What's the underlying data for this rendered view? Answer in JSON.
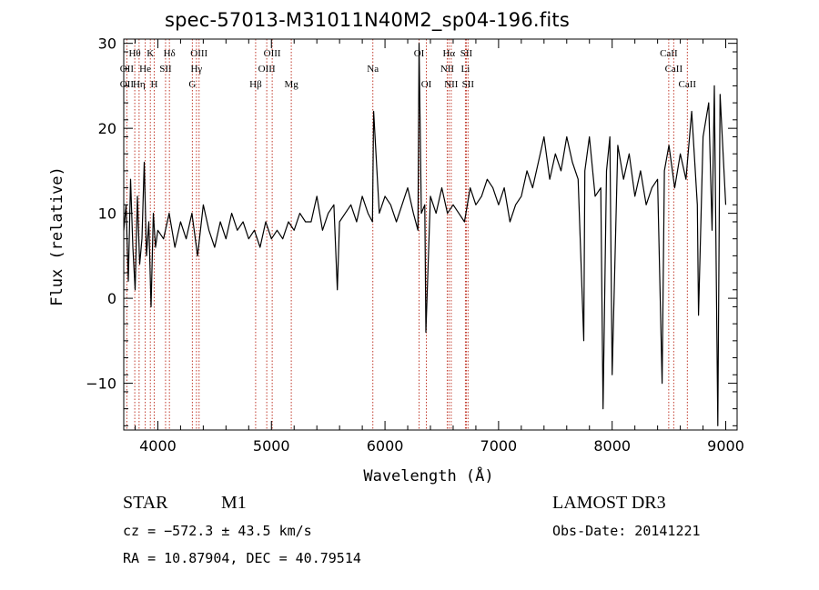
{
  "chart_data": {
    "type": "line",
    "title": "spec-57013-M31011N40M2_sp04-196.fits",
    "xlabel": "Wavelength (Å)",
    "ylabel": "Flux (relative)",
    "xlim": [
      3700,
      9100
    ],
    "ylim": [
      -15.5,
      30.5
    ],
    "x_ticks": [
      4000,
      5000,
      6000,
      7000,
      8000,
      9000
    ],
    "x_tick_labels": [
      "4000",
      "5000",
      "6000",
      "7000",
      "8000",
      "9000"
    ],
    "y_ticks": [
      -10,
      0,
      10,
      20,
      30
    ],
    "y_tick_labels": [
      "−10",
      "0",
      "10",
      "20",
      "30"
    ],
    "grid": false,
    "series": [
      {
        "name": "flux",
        "x": [
          3700,
          3720,
          3740,
          3760,
          3780,
          3800,
          3820,
          3840,
          3860,
          3880,
          3900,
          3920,
          3940,
          3960,
          3980,
          4000,
          4050,
          4100,
          4150,
          4200,
          4250,
          4300,
          4350,
          4400,
          4450,
          4500,
          4550,
          4600,
          4650,
          4700,
          4750,
          4800,
          4850,
          4900,
          4950,
          5000,
          5050,
          5100,
          5150,
          5200,
          5250,
          5300,
          5350,
          5400,
          5450,
          5500,
          5550,
          5580,
          5600,
          5650,
          5700,
          5750,
          5800,
          5850,
          5890,
          5900,
          5950,
          6000,
          6050,
          6100,
          6150,
          6200,
          6250,
          6290,
          6300,
          6320,
          6350,
          6360,
          6400,
          6450,
          6500,
          6550,
          6600,
          6650,
          6700,
          6750,
          6800,
          6850,
          6900,
          6950,
          7000,
          7050,
          7100,
          7150,
          7200,
          7250,
          7300,
          7350,
          7400,
          7450,
          7500,
          7550,
          7600,
          7650,
          7700,
          7750,
          7760,
          7800,
          7850,
          7900,
          7920,
          7950,
          7980,
          8000,
          8050,
          8100,
          8150,
          8200,
          8250,
          8300,
          8350,
          8400,
          8440,
          8460,
          8500,
          8550,
          8600,
          8650,
          8700,
          8750,
          8760,
          8800,
          8850,
          8880,
          8900,
          8930,
          8950,
          9000
        ],
        "y": [
          8,
          11,
          2,
          14,
          6,
          1,
          12,
          4,
          7,
          16,
          5,
          9,
          -1,
          10,
          6,
          8,
          7,
          10,
          6,
          9,
          7,
          10,
          5,
          11,
          8,
          6,
          9,
          7,
          10,
          8,
          9,
          7,
          8,
          6,
          9,
          7,
          8,
          7,
          9,
          8,
          10,
          9,
          9,
          12,
          8,
          10,
          11,
          1,
          9,
          10,
          11,
          9,
          12,
          10,
          9,
          22,
          10,
          12,
          11,
          9,
          11,
          13,
          10,
          8,
          30,
          10,
          11,
          -4,
          12,
          10,
          13,
          10,
          11,
          10,
          9,
          13,
          11,
          12,
          14,
          13,
          11,
          13,
          9,
          11,
          12,
          15,
          13,
          16,
          19,
          14,
          17,
          15,
          19,
          16,
          14,
          -5,
          15,
          19,
          12,
          13,
          -13,
          15,
          19,
          -9,
          18,
          14,
          17,
          12,
          15,
          11,
          13,
          14,
          -10,
          15,
          18,
          13,
          17,
          14,
          22,
          11,
          -2,
          19,
          23,
          8,
          25,
          -15,
          24,
          11
        ]
      }
    ],
    "line_markers": [
      {
        "label": "Hθ",
        "x": 3797,
        "row": 1
      },
      {
        "label": "OII",
        "x": 3727,
        "row": 2
      },
      {
        "label": "OII",
        "x": 3727,
        "row": 3
      },
      {
        "label": "He",
        "x": 3889,
        "row": 2
      },
      {
        "label": "Hη",
        "x": 3835,
        "row": 3
      },
      {
        "label": "K",
        "x": 3934,
        "row": 1
      },
      {
        "label": "H",
        "x": 3968,
        "row": 3
      },
      {
        "label": "SII",
        "x": 4068,
        "row": 2
      },
      {
        "label": "Hδ",
        "x": 4102,
        "row": 1
      },
      {
        "label": "OIII",
        "x": 4363,
        "row": 1
      },
      {
        "label": "Hγ",
        "x": 4340,
        "row": 2
      },
      {
        "label": "G",
        "x": 4304,
        "row": 3
      },
      {
        "label": "Hβ",
        "x": 4861,
        "row": 3
      },
      {
        "label": "OIII",
        "x": 4959,
        "row": 2
      },
      {
        "label": "OIII",
        "x": 5007,
        "row": 1
      },
      {
        "label": "Mg",
        "x": 5175,
        "row": 3
      },
      {
        "label": "Na",
        "x": 5893,
        "row": 2
      },
      {
        "label": "OI",
        "x": 6300,
        "row": 1
      },
      {
        "label": "OI",
        "x": 6364,
        "row": 3
      },
      {
        "label": "Hα",
        "x": 6563,
        "row": 1
      },
      {
        "label": "NII",
        "x": 6548,
        "row": 2
      },
      {
        "label": "NII",
        "x": 6583,
        "row": 3
      },
      {
        "label": "SII",
        "x": 6716,
        "row": 1
      },
      {
        "label": "Li",
        "x": 6708,
        "row": 2
      },
      {
        "label": "SII",
        "x": 6731,
        "row": 3
      },
      {
        "label": "CaII",
        "x": 8498,
        "row": 1
      },
      {
        "label": "CaII",
        "x": 8542,
        "row": 2
      },
      {
        "label": "CaII",
        "x": 8662,
        "row": 3
      }
    ],
    "marker_color": "#c0392b"
  },
  "info": {
    "class": "STAR",
    "subclass": "M1",
    "survey": "LAMOST DR3",
    "cz": "cz = −572.3 ± 43.5 km/s",
    "obs_date": "Obs-Date: 20141221",
    "radec": "RA =  10.87904, DEC =  40.79514"
  }
}
